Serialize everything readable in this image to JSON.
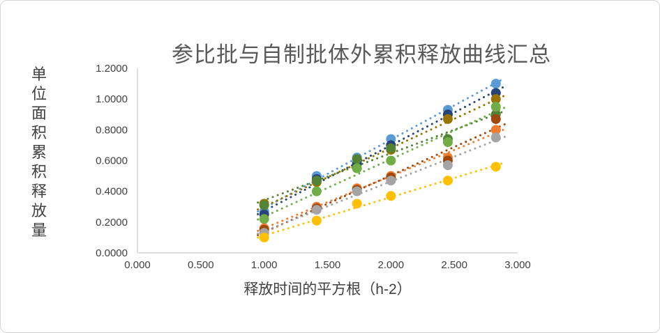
{
  "chart_data": {
    "type": "scatter",
    "title": "参比批与自制批体外累积释放曲线汇总",
    "xlabel": "释放时间的平方根（h-2）",
    "ylabel": "单位面积累积释放量",
    "xlim": [
      0,
      3.0
    ],
    "ylim": [
      0,
      1.2
    ],
    "x_ticks": [
      "0.000",
      "0.500",
      "1.000",
      "1.500",
      "2.000",
      "2.500",
      "3.000"
    ],
    "y_ticks": [
      "0.0000",
      "0.2000",
      "0.4000",
      "0.6000",
      "0.8000",
      "1.0000",
      "1.2000"
    ],
    "grid": false,
    "legend": "none",
    "marker": "circle",
    "trendline_style": "dotted",
    "x": [
      1.0,
      1.414,
      1.732,
      2.0,
      2.449,
      2.828
    ],
    "series": [
      {
        "name": "series-lightblue",
        "color": "#5B9BD5",
        "values": [
          0.27,
          0.5,
          0.62,
          0.74,
          0.93,
          1.1
        ]
      },
      {
        "name": "series-navy",
        "color": "#264478",
        "values": [
          0.25,
          0.48,
          0.58,
          0.7,
          0.9,
          1.04
        ]
      },
      {
        "name": "series-olive",
        "color": "#997300",
        "values": [
          0.32,
          0.46,
          0.55,
          0.67,
          0.87,
          1.0
        ]
      },
      {
        "name": "series-darkgreen",
        "color": "#548235",
        "values": [
          0.31,
          0.47,
          0.61,
          0.68,
          0.74,
          0.9
        ]
      },
      {
        "name": "series-green",
        "color": "#70AD47",
        "values": [
          0.22,
          0.4,
          0.55,
          0.6,
          0.72,
          0.95
        ]
      },
      {
        "name": "series-orange",
        "color": "#ED7D31",
        "values": [
          0.16,
          0.3,
          0.42,
          0.5,
          0.62,
          0.8
        ]
      },
      {
        "name": "series-brick",
        "color": "#9E480E",
        "values": [
          0.15,
          0.29,
          0.41,
          0.49,
          0.6,
          0.87
        ]
      },
      {
        "name": "series-gray",
        "color": "#A5A5A5",
        "values": [
          0.13,
          0.28,
          0.4,
          0.47,
          0.57,
          0.75
        ]
      },
      {
        "name": "series-yellow",
        "color": "#FFC000",
        "values": [
          0.1,
          0.21,
          0.32,
          0.37,
          0.47,
          0.56
        ]
      }
    ],
    "axis_color": "#BFBFBF",
    "tick_label_color": "#404040",
    "title_color": "#595959"
  }
}
